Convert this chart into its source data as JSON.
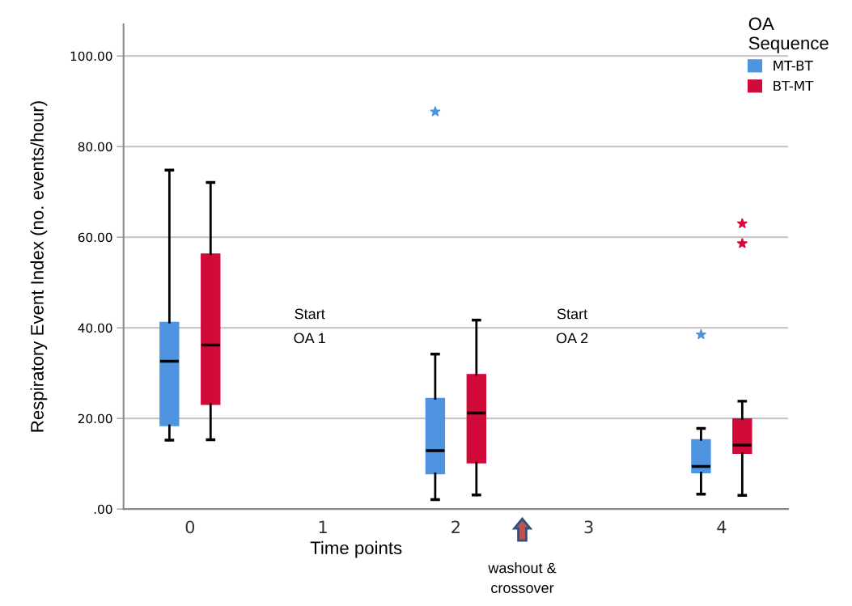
{
  "chart_data": {
    "type": "box",
    "categories": [
      "0",
      "1",
      "2",
      "3",
      "4"
    ],
    "xlabel": "Time points",
    "ylabel": "Respiratory Event Index (no. events/hour)",
    "legend_title": "OA\nSequence",
    "legend": "top right",
    "grid": "y",
    "marker": "star",
    "ylim": [
      0,
      107
    ],
    "yticks": [
      {
        "value": 0,
        "label": ".00"
      },
      {
        "value": 20,
        "label": "20.00"
      },
      {
        "value": 40,
        "label": "40.00"
      },
      {
        "value": 60,
        "label": "60.00"
      },
      {
        "value": 80,
        "label": "80.00"
      },
      {
        "value": 100,
        "label": "100.00"
      }
    ],
    "series": [
      {
        "name": "MT-BT",
        "color": "#4f94e0",
        "boxes": [
          {
            "low": 15.2,
            "q1": 18.4,
            "median": 32.6,
            "q3": 41.2,
            "high": 74.8
          },
          null,
          {
            "low": 2.1,
            "q1": 7.8,
            "median": 12.9,
            "q3": 24.4,
            "high": 34.2,
            "outliers": [
              87.7
            ]
          },
          null,
          {
            "low": 3.3,
            "q1": 8.0,
            "median": 9.4,
            "q3": 15.3,
            "high": 17.8,
            "outliers": [
              38.5
            ]
          }
        ]
      },
      {
        "name": "BT-MT",
        "color": "#d10a3a",
        "boxes": [
          {
            "low": 15.3,
            "q1": 23.1,
            "median": 36.2,
            "q3": 56.3,
            "high": 72.1
          },
          null,
          {
            "low": 3.1,
            "q1": 10.2,
            "median": 21.2,
            "q3": 29.7,
            "high": 41.7
          },
          null,
          {
            "low": 3.0,
            "q1": 12.3,
            "median": 14.1,
            "q3": 19.9,
            "high": 23.8,
            "outliers": [
              63.0,
              58.6
            ]
          }
        ]
      }
    ],
    "annotations": [
      "Start\nOA 1",
      "Start\nOA 2",
      "washout &\ncrossover"
    ]
  }
}
